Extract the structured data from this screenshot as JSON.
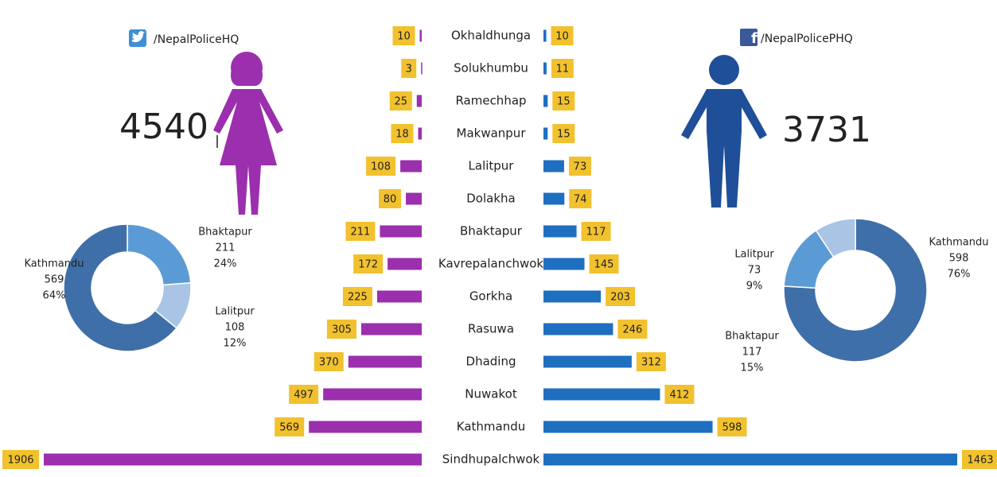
{
  "chart_data": [
    {
      "type": "bar",
      "categories": [
        "Okhaldhunga",
        "Solukhumbu",
        "Ramechhap",
        "Makwanpur",
        "Lalitpur",
        "Dolakha",
        "Bhaktapur",
        "Kavrepalanchwok",
        "Gorkha",
        "Rasuwa",
        "Dhading",
        "Nuwakot",
        "Kathmandu",
        "Sindhupalchwok"
      ],
      "series": [
        {
          "color": "#9b2fae",
          "xlim": [
            0,
            1906
          ],
          "values": [
            10,
            3,
            25,
            18,
            108,
            80,
            211,
            172,
            225,
            305,
            370,
            497,
            569,
            1906
          ]
        },
        {
          "color": "#1f6fc0",
          "xlim": [
            0,
            1463
          ],
          "values": [
            10,
            11,
            15,
            15,
            73,
            74,
            117,
            145,
            203,
            246,
            312,
            412,
            598,
            1463
          ]
        }
      ]
    },
    {
      "type": "pie",
      "title": "/NepalPoliceHQ",
      "total": 4540,
      "categories": [
        "Bhaktapur",
        "Lalitpur",
        "Kathmandu"
      ],
      "values": [
        211,
        108,
        569
      ],
      "share_labels": [
        "24%",
        "12%",
        "64%"
      ],
      "colors": [
        "#5b9bd5",
        "#a9c4e4",
        "#3f6fa8"
      ]
    },
    {
      "type": "pie",
      "title": "/NepalPolicePHQ",
      "total": 3731,
      "categories": [
        "Kathmandu",
        "Bhaktapur",
        "Lalitpur"
      ],
      "values": [
        598,
        117,
        73
      ],
      "share_labels": [
        "76%",
        "15%",
        "9%"
      ],
      "colors": [
        "#3f6fa8",
        "#5b9bd5",
        "#a9c4e4"
      ]
    }
  ]
}
